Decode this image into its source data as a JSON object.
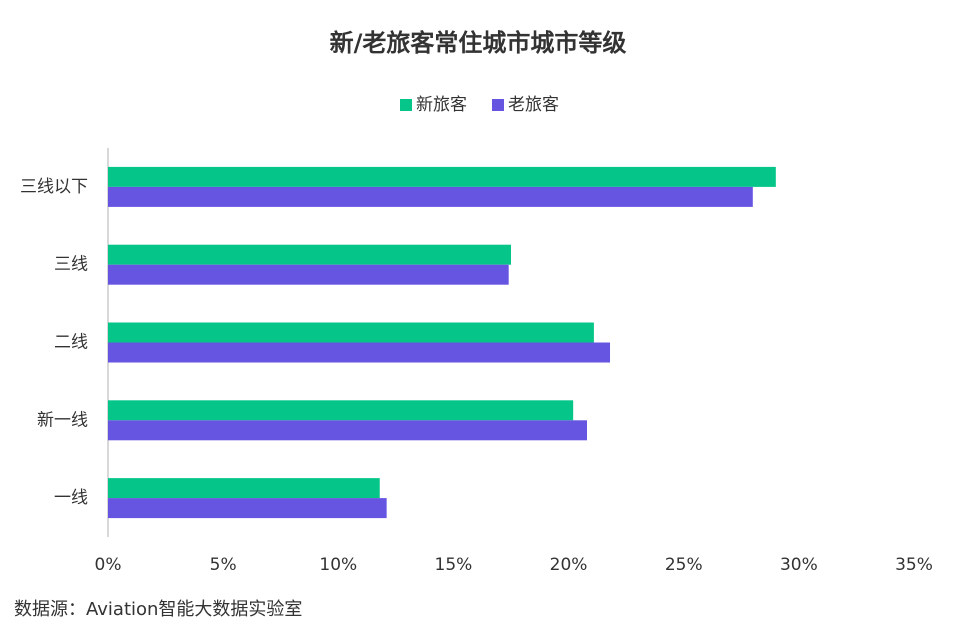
{
  "chart_data": {
    "type": "hbar",
    "title": "新/老旅客常住城市城市等级",
    "categories": [
      "三线以下",
      "三线",
      "二线",
      "新一线",
      "一线"
    ],
    "series": [
      {
        "name": "新旅客",
        "color": "#05c688",
        "values": [
          29.0,
          17.5,
          21.1,
          20.2,
          11.8
        ]
      },
      {
        "name": "老旅客",
        "color": "#6655e0",
        "values": [
          28.0,
          17.4,
          21.8,
          20.8,
          12.1
        ]
      }
    ],
    "xlim": [
      0,
      35
    ],
    "xticks": [
      {
        "value": 0,
        "label": "0%"
      },
      {
        "value": 5,
        "label": "5%"
      },
      {
        "value": 10,
        "label": "10%"
      },
      {
        "value": 15,
        "label": "15%"
      },
      {
        "value": 20,
        "label": "20%"
      },
      {
        "value": 25,
        "label": "25%"
      },
      {
        "value": 30,
        "label": "30%"
      },
      {
        "value": 35,
        "label": "35%"
      }
    ],
    "legend": "top",
    "source": "数据源：Aviation智能大数据实验室"
  }
}
